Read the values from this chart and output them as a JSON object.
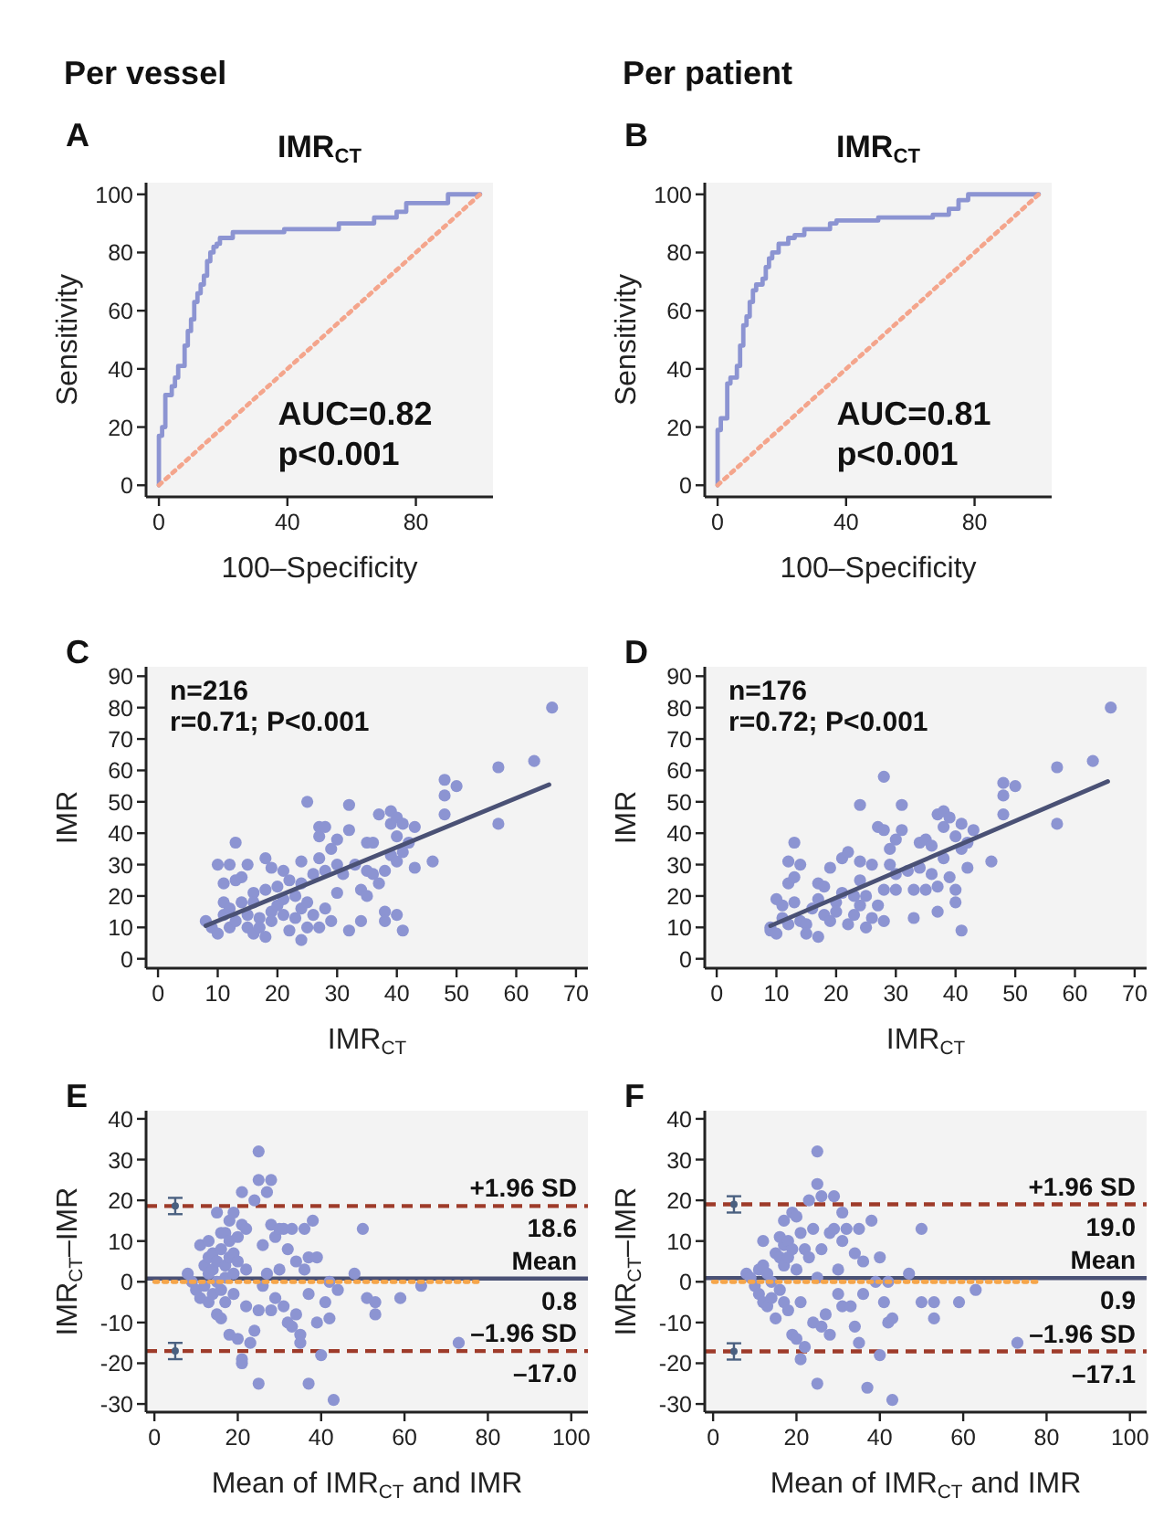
{
  "chart_data": [
    {
      "type": "line",
      "subtitle": "Per vessel",
      "title": "IMR$_{CT}$",
      "xlabel": "100–Specificity",
      "ylabel": "Sensitivity",
      "xlim": [
        -4,
        104
      ],
      "ylim": [
        -4,
        104
      ],
      "xticks": [
        0,
        40,
        80
      ],
      "yticks": [
        0,
        20,
        40,
        60,
        80,
        100
      ],
      "annotations": [
        "A",
        "AUC=0.82",
        "p<0.001"
      ],
      "series": [
        {
          "type": "step",
          "color": "#8c94d2",
          "x": [
            0,
            1,
            2,
            4,
            5,
            6,
            8,
            9,
            10,
            11,
            12,
            13,
            14,
            15,
            16,
            17,
            18,
            19,
            23,
            39,
            56,
            67,
            74,
            77,
            90,
            100
          ],
          "values": [
            0,
            17,
            20,
            31,
            34,
            37,
            41,
            48,
            53,
            57,
            63,
            66,
            69,
            72,
            77,
            80,
            82,
            83,
            85,
            87,
            88,
            90,
            92,
            94,
            97,
            100
          ]
        },
        {
          "type": "line",
          "color": "#f4a58c",
          "line_style": "dotted",
          "x": [
            0,
            100
          ],
          "values": [
            0,
            100
          ]
        }
      ]
    },
    {
      "type": "line",
      "subtitle": "Per patient",
      "title": "IMR$_{CT}$",
      "xlabel": "100–Specificity",
      "ylabel": "Sensitivity",
      "xlim": [
        -4,
        104
      ],
      "ylim": [
        -4,
        104
      ],
      "xticks": [
        0,
        40,
        80
      ],
      "yticks": [
        0,
        20,
        40,
        60,
        80,
        100
      ],
      "annotations": [
        "B",
        "AUC=0.81",
        "p<0.001"
      ],
      "series": [
        {
          "type": "step",
          "color": "#8c94d2",
          "x": [
            0,
            1,
            3,
            4,
            6,
            7,
            8,
            9,
            10,
            11,
            12,
            14,
            15,
            16,
            17,
            19,
            22,
            24,
            27,
            35,
            37,
            50,
            67,
            72,
            75,
            78,
            80,
            100
          ],
          "values": [
            0,
            19,
            23,
            35,
            37,
            41,
            48,
            55,
            58,
            63,
            67,
            69,
            71,
            75,
            78,
            80,
            83,
            85,
            86,
            88,
            90,
            91,
            92,
            93,
            95,
            98,
            100,
            100
          ]
        },
        {
          "type": "line",
          "color": "#f4a58c",
          "line_style": "dotted",
          "x": [
            0,
            100
          ],
          "values": [
            0,
            100
          ]
        }
      ]
    },
    {
      "type": "scatter",
      "xlabel": "IMR$_{CT}$",
      "ylabel": "IMR",
      "xlim": [
        -2,
        72
      ],
      "ylim": [
        -3,
        93
      ],
      "xticks": [
        0,
        10,
        20,
        30,
        40,
        50,
        60,
        70
      ],
      "yticks": [
        0,
        10,
        20,
        30,
        40,
        50,
        60,
        70,
        80,
        90
      ],
      "annotations": [
        "C",
        "n=216",
        "r=0.71; P<0.001"
      ],
      "series": [
        {
          "type": "scatter",
          "marker": "circle",
          "color": "#8c94d2",
          "x": [
            8,
            9,
            10,
            10,
            11,
            11,
            11,
            12,
            12,
            12,
            13,
            13,
            13,
            14,
            14,
            15,
            15,
            15,
            16,
            16,
            16,
            17,
            17,
            18,
            18,
            18,
            19,
            19,
            19,
            20,
            20,
            21,
            21,
            21,
            22,
            22,
            23,
            23,
            24,
            24,
            24,
            24,
            25,
            25,
            25,
            26,
            26,
            27,
            27,
            27,
            27,
            28,
            28,
            28,
            29,
            29,
            30,
            30,
            30,
            31,
            32,
            32,
            32,
            33,
            34,
            34,
            35,
            35,
            35,
            36,
            36,
            37,
            37,
            38,
            38,
            38,
            39,
            39,
            39,
            40,
            40,
            40,
            40,
            41,
            41,
            41,
            42,
            43,
            43,
            46,
            48,
            48,
            48,
            50,
            57,
            57,
            63,
            66
          ],
          "values": [
            12,
            10,
            8,
            30,
            24,
            14,
            18,
            30,
            10,
            16,
            37,
            25,
            12,
            26,
            18,
            30,
            14,
            10,
            8,
            21,
            18,
            13,
            10,
            32,
            22,
            7,
            29,
            15,
            12,
            23,
            17,
            28,
            19,
            14,
            9,
            25,
            20,
            13,
            6,
            31,
            24,
            16,
            50,
            18,
            10,
            27,
            14,
            42,
            39,
            32,
            10,
            42,
            28,
            16,
            35,
            12,
            38,
            30,
            21,
            27,
            49,
            41,
            9,
            30,
            22,
            12,
            37,
            28,
            20,
            37,
            27,
            46,
            24,
            15,
            12,
            28,
            47,
            43,
            33,
            45,
            39,
            31,
            14,
            9,
            43,
            34,
            37,
            42,
            29,
            31,
            57,
            52,
            46,
            55,
            61,
            43,
            63,
            80
          ]
        },
        {
          "type": "line",
          "color": "#4a5175",
          "x": [
            8,
            65.5
          ],
          "values": [
            10.5,
            55.5
          ]
        }
      ]
    },
    {
      "type": "scatter",
      "xlabel": "IMR$_{CT}$",
      "ylabel": "IMR",
      "xlim": [
        -2,
        72
      ],
      "ylim": [
        -3,
        93
      ],
      "xticks": [
        0,
        10,
        20,
        30,
        40,
        50,
        60,
        70
      ],
      "yticks": [
        0,
        10,
        20,
        30,
        40,
        50,
        60,
        70,
        80,
        90
      ],
      "annotations": [
        "D",
        "n=176",
        "r=0.72; P<0.001"
      ],
      "series": [
        {
          "type": "scatter",
          "marker": "circle",
          "color": "#8c94d2",
          "x": [
            9,
            9,
            10,
            10,
            11,
            11,
            12,
            12,
            12,
            13,
            13,
            13,
            14,
            14,
            15,
            15,
            16,
            17,
            17,
            17,
            18,
            18,
            19,
            19,
            20,
            20,
            21,
            21,
            22,
            22,
            23,
            23,
            24,
            24,
            24,
            24,
            25,
            25,
            26,
            26,
            27,
            27,
            28,
            28,
            28,
            28,
            29,
            29,
            30,
            30,
            30,
            31,
            31,
            32,
            33,
            33,
            34,
            34,
            35,
            35,
            36,
            36,
            37,
            37,
            37,
            38,
            38,
            38,
            39,
            39,
            40,
            40,
            40,
            41,
            41,
            41,
            42,
            42,
            43,
            46,
            48,
            48,
            48,
            50,
            57,
            57,
            63,
            66
          ],
          "values": [
            10,
            9,
            8,
            19,
            13,
            17,
            31,
            24,
            11,
            37,
            26,
            18,
            30,
            12,
            11,
            8,
            16,
            24,
            7,
            19,
            23,
            14,
            29,
            12,
            18,
            15,
            21,
            32,
            34,
            11,
            20,
            14,
            49,
            25,
            31,
            17,
            10,
            20,
            30,
            13,
            42,
            17,
            58,
            41,
            22,
            12,
            30,
            35,
            38,
            27,
            22,
            49,
            41,
            28,
            13,
            22,
            37,
            29,
            38,
            22,
            36,
            27,
            46,
            23,
            15,
            47,
            42,
            32,
            45,
            26,
            39,
            22,
            18,
            9,
            43,
            35,
            37,
            29,
            41,
            31,
            56,
            52,
            46,
            55,
            61,
            43,
            63,
            80
          ]
        },
        {
          "type": "line",
          "color": "#4a5175",
          "x": [
            9,
            65.5
          ],
          "values": [
            10.5,
            56.5
          ]
        }
      ]
    },
    {
      "type": "scatter",
      "xlabel": "Mean of IMR$_{CT}$ and IMR",
      "ylabel": "IMR$_{CT}$–IMR",
      "xlim": [
        -2,
        104
      ],
      "ylim": [
        -32,
        42
      ],
      "xticks": [
        0,
        20,
        40,
        60,
        80,
        100
      ],
      "yticks": [
        -30,
        -20,
        -10,
        0,
        10,
        20,
        30,
        40
      ],
      "annotations": [
        "E",
        {
          "text": "18.6",
          "y": 18.6
        },
        {
          "text": "0.8",
          "y": 0.8
        },
        {
          "text": "–17.0",
          "y": -17.0
        }
      ],
      "ref_lines": [
        {
          "axis": "y",
          "value": 18.6,
          "label": "+1.96 SD",
          "color": "#9e3b2a",
          "line_style": "dashed"
        },
        {
          "axis": "y",
          "value": 0.8,
          "label": "Mean",
          "color": "#4a5175",
          "line_style": "solid"
        },
        {
          "axis": "y",
          "value": -17.0,
          "label": "–1.96 SD",
          "color": "#9e3b2a",
          "line_style": "dashed"
        }
      ],
      "series": [
        {
          "type": "scatter",
          "marker": "circle",
          "color": "#8c94d2",
          "x": [
            8,
            9,
            10,
            11,
            11,
            12,
            12,
            13,
            13,
            13,
            13,
            14,
            14,
            14,
            15,
            15,
            15,
            15,
            16,
            16,
            16,
            16,
            17,
            17,
            17,
            17,
            18,
            18,
            18,
            18,
            19,
            19,
            19,
            19,
            20,
            20,
            20,
            21,
            21,
            21,
            21,
            22,
            22,
            22,
            23,
            24,
            24,
            25,
            25,
            25,
            25,
            26,
            26,
            27,
            27,
            28,
            28,
            28,
            29,
            29,
            30,
            30,
            31,
            31,
            32,
            32,
            33,
            33,
            34,
            34,
            35,
            35,
            36,
            36,
            37,
            37,
            37,
            38,
            39,
            39,
            40,
            41,
            42,
            42,
            43,
            44,
            48,
            50,
            51,
            53,
            53,
            59,
            64,
            73
          ],
          "values": [
            2,
            0,
            -2,
            9,
            -4,
            4,
            -1,
            10,
            6,
            2,
            -5,
            7,
            3,
            -3,
            17,
            5,
            0,
            -8,
            12,
            8,
            -2,
            -9,
            12,
            4,
            1,
            -5,
            15,
            10,
            6,
            -13,
            17,
            7,
            2,
            -3,
            11,
            5,
            -14,
            22,
            14,
            -20,
            -19,
            13,
            3,
            -6,
            -15,
            20,
            -12,
            32,
            25,
            -7,
            -25,
            9,
            -1,
            22,
            2,
            25,
            14,
            -7,
            11,
            -4,
            13,
            3,
            13,
            -6,
            8,
            -10,
            13,
            -11,
            5,
            -8,
            -13,
            -15,
            13,
            3,
            -3,
            -25,
            6,
            15,
            6,
            -10,
            -18,
            -5,
            0,
            -9,
            -29,
            -2,
            2,
            13,
            -4,
            -5,
            -8,
            -4,
            -1,
            -15
          ]
        },
        {
          "type": "line",
          "color": "#f5a54a",
          "line_style": "dotted",
          "x": [
            0,
            78
          ],
          "values": [
            0,
            0
          ]
        },
        {
          "type": "scatter",
          "marker": "circle",
          "color": "#4a6080",
          "x": [
            5,
            5
          ],
          "values": [
            18.6,
            -17.0
          ],
          "errors": [
            2,
            2
          ]
        }
      ]
    },
    {
      "type": "scatter",
      "xlabel": "Mean of IMR$_{CT}$ and IMR",
      "ylabel": "IMR$_{CT}$–IMR",
      "xlim": [
        -2,
        104
      ],
      "ylim": [
        -32,
        42
      ],
      "xticks": [
        0,
        20,
        40,
        60,
        80,
        100
      ],
      "yticks": [
        -30,
        -20,
        -10,
        0,
        10,
        20,
        30,
        40
      ],
      "annotations": [
        "F",
        {
          "text": "19.0",
          "y": 19.0
        },
        {
          "text": "0.9",
          "y": 0.9
        },
        {
          "text": "–17.1",
          "y": -17.1
        }
      ],
      "ref_lines": [
        {
          "axis": "y",
          "value": 19.0,
          "label": "+1.96 SD",
          "color": "#9e3b2a",
          "line_style": "dashed"
        },
        {
          "axis": "y",
          "value": 0.9,
          "label": "Mean",
          "color": "#4a5175",
          "line_style": "solid"
        },
        {
          "axis": "y",
          "value": -17.1,
          "label": "–1.96 SD",
          "color": "#9e3b2a",
          "line_style": "dashed"
        }
      ],
      "series": [
        {
          "type": "scatter",
          "marker": "circle",
          "color": "#8c94d2",
          "x": [
            8,
            9,
            10,
            11,
            11,
            12,
            12,
            12,
            13,
            13,
            14,
            14,
            15,
            15,
            16,
            16,
            16,
            17,
            17,
            17,
            17,
            18,
            18,
            18,
            19,
            19,
            19,
            20,
            20,
            20,
            21,
            21,
            21,
            22,
            22,
            23,
            23,
            24,
            24,
            25,
            25,
            25,
            25,
            26,
            26,
            26,
            27,
            28,
            28,
            29,
            29,
            30,
            30,
            31,
            31,
            31,
            32,
            33,
            34,
            34,
            35,
            35,
            36,
            36,
            37,
            38,
            39,
            40,
            40,
            41,
            42,
            42,
            43,
            43,
            47,
            50,
            50,
            53,
            53,
            59,
            63,
            73
          ],
          "values": [
            2,
            1,
            -1,
            3,
            -3,
            10,
            4,
            -5,
            2,
            -6,
            0,
            -4,
            7,
            -9,
            6,
            11,
            -2,
            15,
            9,
            4,
            -5,
            10,
            6,
            -7,
            17,
            8,
            -13,
            16,
            3,
            -14,
            12,
            -5,
            -19,
            8,
            -16,
            20,
            6,
            13,
            -10,
            32,
            24,
            -25,
            1,
            21,
            8,
            -11,
            -8,
            12,
            -13,
            21,
            13,
            3,
            -3,
            17,
            10,
            -6,
            13,
            -6,
            7,
            -11,
            -15,
            13,
            5,
            -3,
            -26,
            15,
            0,
            6,
            -18,
            -5,
            -10,
            0,
            -29,
            -9,
            2,
            13,
            -5,
            -5,
            -9,
            -5,
            -2,
            -15
          ]
        },
        {
          "type": "line",
          "color": "#f5a54a",
          "line_style": "dotted",
          "x": [
            0,
            78
          ],
          "values": [
            0,
            0
          ]
        },
        {
          "type": "scatter",
          "marker": "circle",
          "color": "#4a6080",
          "x": [
            5,
            5
          ],
          "values": [
            19.0,
            -17.1
          ],
          "errors": [
            2,
            2
          ]
        }
      ]
    }
  ]
}
